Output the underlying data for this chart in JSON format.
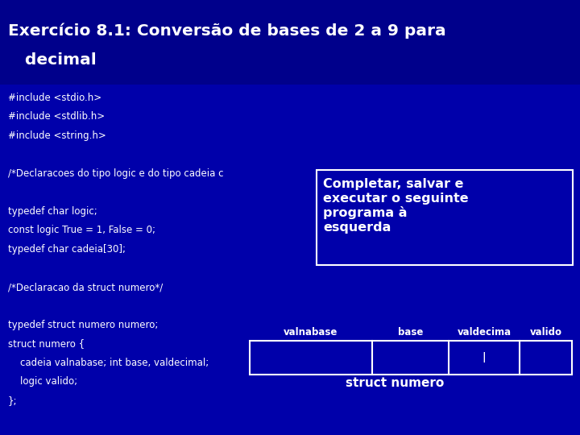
{
  "title_line1": "Exercício 8.1: Conversão de bases de 2 a 9 para",
  "title_line2": "   decimal",
  "bg_color": "#0000AA",
  "title_bg_color": "#00008B",
  "text_color": "#FFFFFF",
  "callout_text": "Completar, salvar e\nexecutar o seguinte\nprograma à\nesquerda",
  "callout_bg": "#0000AA",
  "callout_border": "#FFFFFF",
  "table_headers": [
    "valnabase",
    "base",
    "valdecima",
    "valido"
  ],
  "struct_label": "struct numero",
  "code_font_size": 8.5,
  "title_font_size": 14.5,
  "code_lines": [
    {
      "text": "#include <stdio.h>",
      "indent": 0
    },
    {
      "text": "#include <stdlib.h>",
      "indent": 0
    },
    {
      "text": "#include <string.h>",
      "indent": 0
    },
    {
      "text": "",
      "indent": 0
    },
    {
      "text": "/*Declaracoes do tipo logic e do tipo cadeia c",
      "indent": 0
    },
    {
      "text": "",
      "indent": 0
    },
    {
      "text": "typedef char logic;",
      "indent": 0
    },
    {
      "text": "const logic True = 1, False = 0;",
      "indent": 0
    },
    {
      "text": "typedef char cadeia[30];",
      "indent": 0
    },
    {
      "text": "",
      "indent": 0
    },
    {
      "text": "/*Declaracao da struct numero*/",
      "indent": 0
    },
    {
      "text": "",
      "indent": 0
    },
    {
      "text": "typedef struct numero numero;",
      "indent": 0
    },
    {
      "text": "struct numero {",
      "indent": 0
    },
    {
      "text": "    cadeia valnabase; int base, valdecimal;",
      "indent": 0
    },
    {
      "text": "    logic valido;",
      "indent": 0
    },
    {
      "text": "};",
      "indent": 0
    }
  ]
}
